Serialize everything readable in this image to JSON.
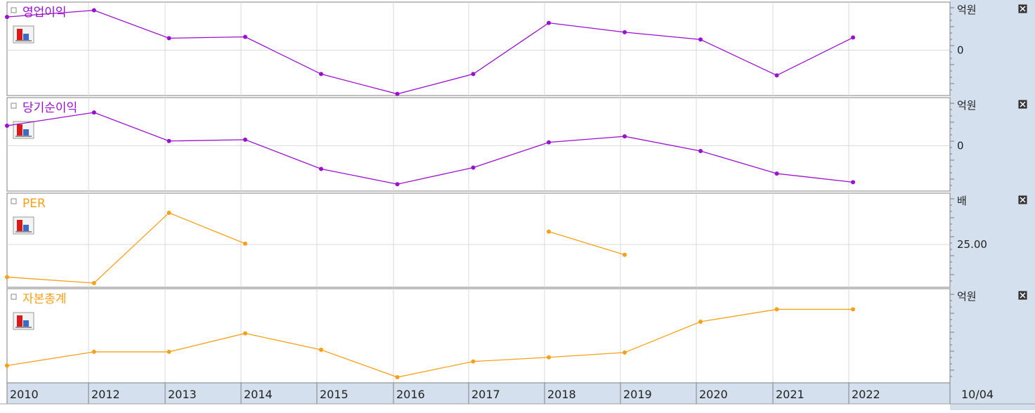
{
  "colors": {
    "purple": "#9A0FD0",
    "orange": "#F7A019",
    "axis_bg": "#D5E0EE",
    "grid": "#D9D9D9",
    "border": "#808080"
  },
  "x_labels": [
    "2010",
    "2012",
    "2013",
    "2014",
    "2015",
    "2016",
    "2017",
    "2018",
    "2019",
    "2020",
    "2021",
    "2022"
  ],
  "date_label": "10/04",
  "chart_data": [
    {
      "type": "line",
      "title": "영업이익",
      "unit": "억원",
      "y_tick": "0",
      "y_tick_value": 0,
      "ylim": [
        -62,
        66
      ],
      "color": "#9A0FD0",
      "legend_icon": "bar-chart-icon",
      "points": [
        [
          2010.0,
          50
        ],
        [
          2010.55,
          60
        ],
        [
          2011.5,
          18
        ],
        [
          2012.5,
          20
        ],
        [
          2013.5,
          -36
        ],
        [
          2014.5,
          -66
        ],
        [
          2015.5,
          -36
        ],
        [
          2016.5,
          41
        ],
        [
          2017.5,
          27
        ],
        [
          2018.5,
          16
        ],
        [
          2019.5,
          -38
        ],
        [
          2020.5,
          19
        ]
      ]
    },
    {
      "type": "line",
      "title": "당기순이익",
      "unit": "억원",
      "y_tick": "0",
      "y_tick_value": 0,
      "ylim": [
        -62,
        66
      ],
      "color": "#9A0FD0",
      "legend_icon": "bar-chart-icon",
      "points": [
        [
          2010.0,
          30
        ],
        [
          2010.55,
          50
        ],
        [
          2011.5,
          7
        ],
        [
          2012.5,
          9
        ],
        [
          2013.5,
          -35
        ],
        [
          2014.5,
          -58
        ],
        [
          2015.5,
          -33
        ],
        [
          2016.5,
          5
        ],
        [
          2017.5,
          14
        ],
        [
          2018.5,
          -8
        ],
        [
          2019.5,
          -42
        ],
        [
          2020.5,
          -55
        ]
      ]
    },
    {
      "type": "line",
      "title": "PER",
      "unit": "배",
      "y_tick": "25.00",
      "y_tick_value": 25,
      "ylim": [
        -20,
        80
      ],
      "color": "#F7A019",
      "legend_icon": "bar-chart-icon",
      "segments": [
        [
          [
            2010.0,
            -13
          ],
          [
            2010.55,
            -20
          ],
          [
            2011.5,
            62
          ],
          [
            2012.5,
            26
          ]
        ],
        [
          [
            2016.5,
            40
          ],
          [
            2017.5,
            13
          ]
        ]
      ]
    },
    {
      "type": "line",
      "title": "자본총계",
      "unit": "억원",
      "ylim": [
        -5,
        120
      ],
      "color": "#F7A019",
      "legend_icon": "bar-chart-icon",
      "points": [
        [
          2010.0,
          14
        ],
        [
          2010.55,
          34
        ],
        [
          2011.5,
          34
        ],
        [
          2012.5,
          61
        ],
        [
          2013.5,
          37
        ],
        [
          2014.5,
          -3
        ],
        [
          2015.5,
          20
        ],
        [
          2016.5,
          26
        ],
        [
          2017.5,
          33
        ],
        [
          2018.5,
          78
        ],
        [
          2019.5,
          96
        ],
        [
          2020.5,
          96
        ]
      ]
    }
  ]
}
